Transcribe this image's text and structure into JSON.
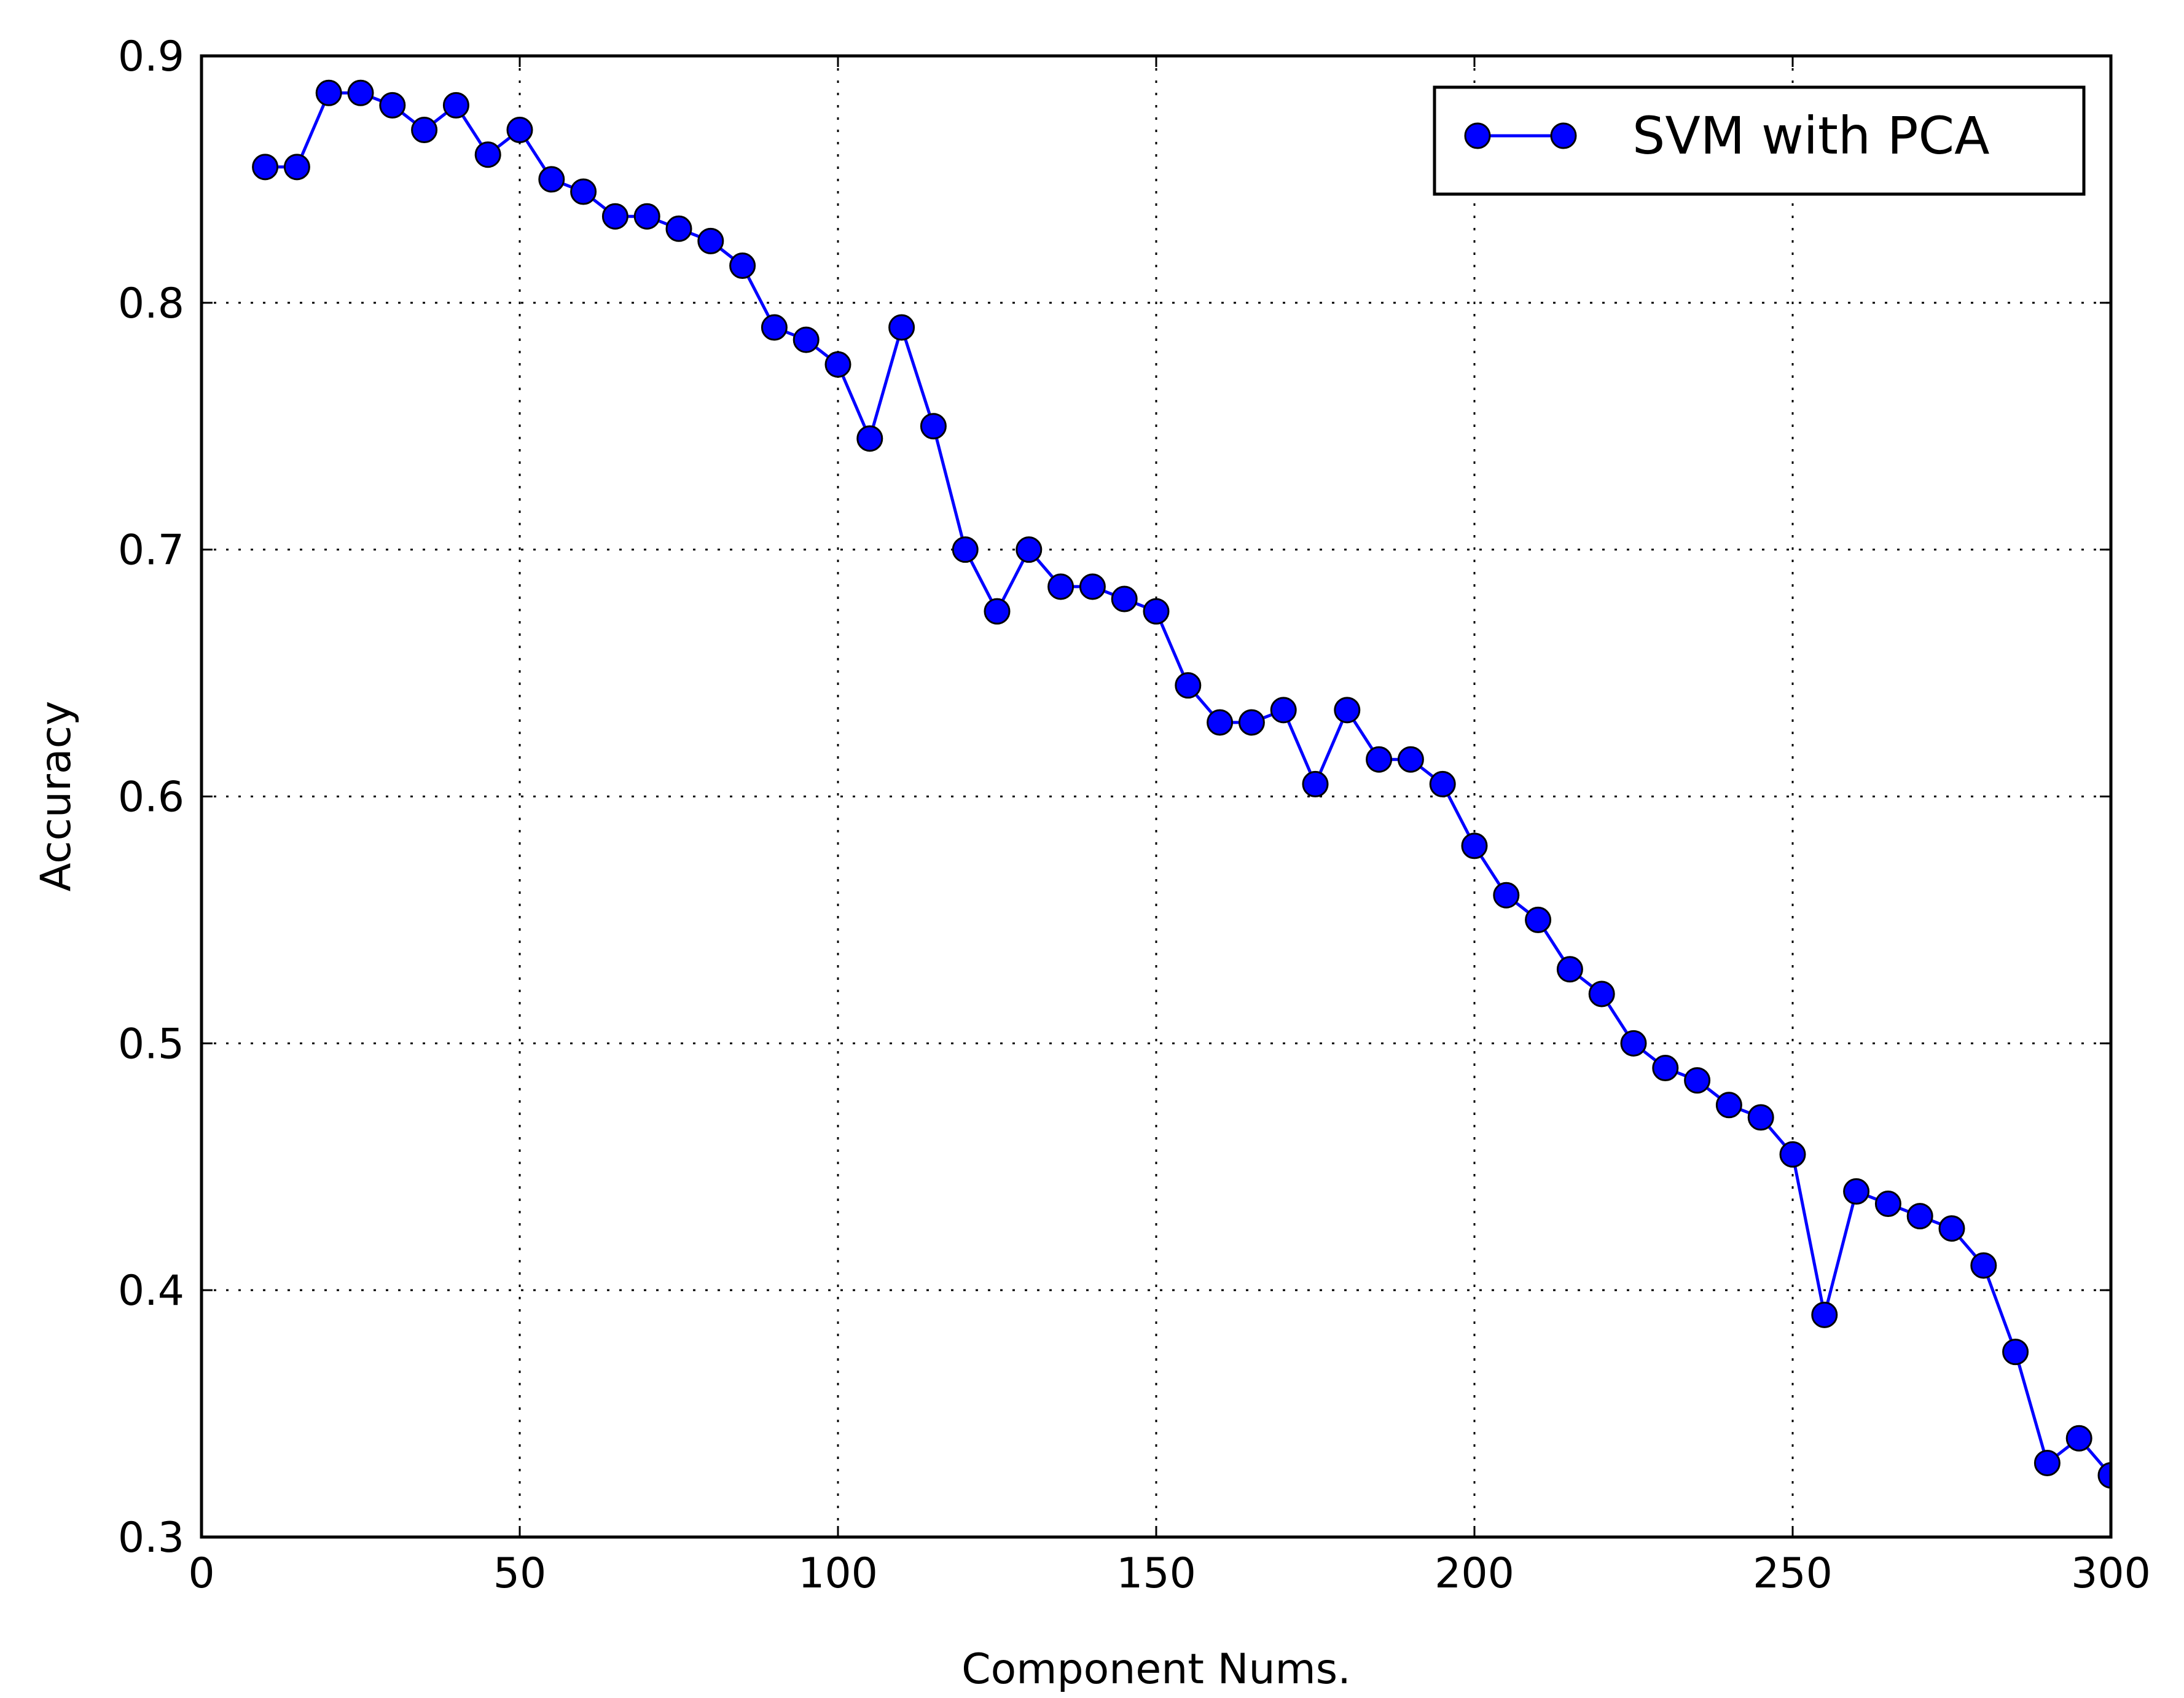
{
  "chart_data": {
    "type": "line",
    "title": "",
    "xlabel": "Component Nums.",
    "ylabel": "Accuracy",
    "xlim": [
      0,
      300
    ],
    "ylim": [
      0.3,
      0.9
    ],
    "x_ticks": [
      0,
      50,
      100,
      150,
      200,
      250,
      300
    ],
    "x_tick_labels": [
      "0",
      "50",
      "100",
      "150",
      "200",
      "250",
      "300"
    ],
    "y_ticks": [
      0.3,
      0.4,
      0.5,
      0.6,
      0.7,
      0.8,
      0.9
    ],
    "y_tick_labels": [
      "0.3",
      "0.4",
      "0.5",
      "0.6",
      "0.7",
      "0.8",
      "0.9"
    ],
    "grid": true,
    "legend_position": "top-right",
    "series": [
      {
        "name": "SVM with PCA",
        "color": "#0000ff",
        "marker": "circle",
        "x": [
          10,
          15,
          20,
          25,
          30,
          35,
          40,
          45,
          50,
          55,
          60,
          65,
          70,
          75,
          80,
          85,
          90,
          95,
          100,
          105,
          110,
          115,
          120,
          125,
          130,
          135,
          140,
          145,
          150,
          155,
          160,
          165,
          170,
          175,
          180,
          185,
          190,
          195,
          200,
          205,
          210,
          215,
          220,
          225,
          230,
          235,
          240,
          245,
          250,
          255,
          260,
          265,
          270,
          275,
          280,
          285,
          290,
          295,
          300
        ],
        "y": [
          0.855,
          0.855,
          0.885,
          0.885,
          0.88,
          0.87,
          0.88,
          0.86,
          0.87,
          0.85,
          0.845,
          0.835,
          0.835,
          0.83,
          0.825,
          0.815,
          0.79,
          0.785,
          0.775,
          0.745,
          0.79,
          0.75,
          0.7,
          0.675,
          0.7,
          0.685,
          0.685,
          0.68,
          0.675,
          0.645,
          0.63,
          0.63,
          0.635,
          0.605,
          0.635,
          0.615,
          0.615,
          0.605,
          0.58,
          0.56,
          0.55,
          0.53,
          0.52,
          0.5,
          0.49,
          0.485,
          0.475,
          0.47,
          0.455,
          0.39,
          0.44,
          0.435,
          0.43,
          0.425,
          0.41,
          0.375,
          0.33,
          0.34,
          0.325
        ]
      }
    ]
  }
}
